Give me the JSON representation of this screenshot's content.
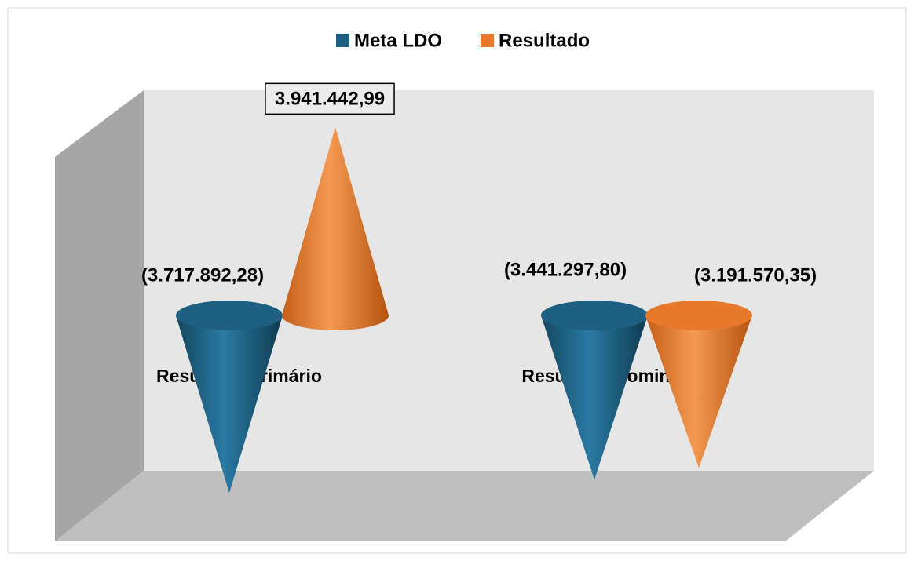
{
  "chart_data": {
    "type": "cone",
    "categories": [
      "Resultado Primário",
      "Resultado Nominal"
    ],
    "series": [
      {
        "name": "Meta LDO",
        "color": "#1e5f82",
        "values": [
          -3717892.28,
          -3441297.8
        ],
        "value_labels": [
          "(3.717.892,28)",
          "(3.441.297,80)"
        ]
      },
      {
        "name": "Resultado",
        "color": "#e8782c",
        "values": [
          3941442.99,
          -3191570.35
        ],
        "value_labels": [
          "3.941.442,99",
          "(3.191.570,35)"
        ]
      }
    ],
    "legend": "top"
  }
}
